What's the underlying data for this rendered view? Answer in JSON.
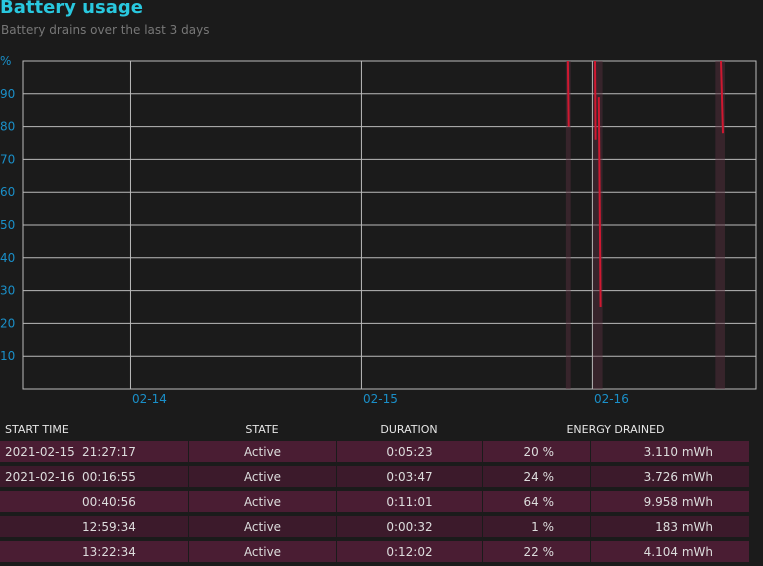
{
  "header": {
    "title": "Battery usage",
    "subtitle": "Battery drains over the last 3 days"
  },
  "chart_data": {
    "type": "line",
    "yunit": "%",
    "yticks": [
      "%",
      "90",
      "80",
      "70",
      "60",
      "50",
      "40",
      "30",
      "20",
      "10"
    ],
    "xticks": [
      "02-14",
      "02-15",
      "02-16"
    ],
    "ylim": [
      0,
      100
    ],
    "xlim": [
      "2021-02-13 12:50",
      "2021-02-16 17:00"
    ],
    "grid": true,
    "colors": {
      "line": "#d01830",
      "grid": "#bbbbbb",
      "axis_text": "#1a8fc8",
      "band": "#5a3040"
    },
    "series": [
      {
        "x": [
          "2021-02-15 21:27",
          "2021-02-15 21:32"
        ],
        "y": [
          100,
          80
        ]
      },
      {
        "x": [
          "2021-02-16 00:16",
          "2021-02-16 00:20"
        ],
        "y": [
          100,
          76
        ]
      },
      {
        "x": [
          "2021-02-16 00:40",
          "2021-02-16 00:51"
        ],
        "y": [
          89,
          25
        ]
      },
      {
        "x": [
          "2021-02-16 13:22",
          "2021-02-16 13:34"
        ],
        "y": [
          100,
          78
        ]
      }
    ],
    "bands": [
      [
        "2021-02-15 21:27",
        "2021-02-15 21:32"
      ],
      [
        "2021-02-16 00:16",
        "2021-02-16 00:51"
      ],
      [
        "2021-02-16 12:59",
        "2021-02-16 13:34"
      ]
    ]
  },
  "table": {
    "headers": [
      "START TIME",
      "STATE",
      "DURATION",
      "ENERGY DRAINED"
    ],
    "rows": [
      {
        "date": "2021-02-15",
        "time": "21:27:17",
        "state": "Active",
        "duration": "0:05:23",
        "percent": "20 %",
        "energy": "3.110 mWh"
      },
      {
        "date": "2021-02-16",
        "time": "00:16:55",
        "state": "Active",
        "duration": "0:03:47",
        "percent": "24 %",
        "energy": "3.726 mWh"
      },
      {
        "date": "",
        "time": "00:40:56",
        "state": "Active",
        "duration": "0:11:01",
        "percent": "64 %",
        "energy": "9.958 mWh"
      },
      {
        "date": "",
        "time": "12:59:34",
        "state": "Active",
        "duration": "0:00:32",
        "percent": "1 %",
        "energy": "183 mWh"
      },
      {
        "date": "",
        "time": "13:22:34",
        "state": "Active",
        "duration": "0:12:02",
        "percent": "22 %",
        "energy": "4.104 mWh"
      }
    ]
  }
}
